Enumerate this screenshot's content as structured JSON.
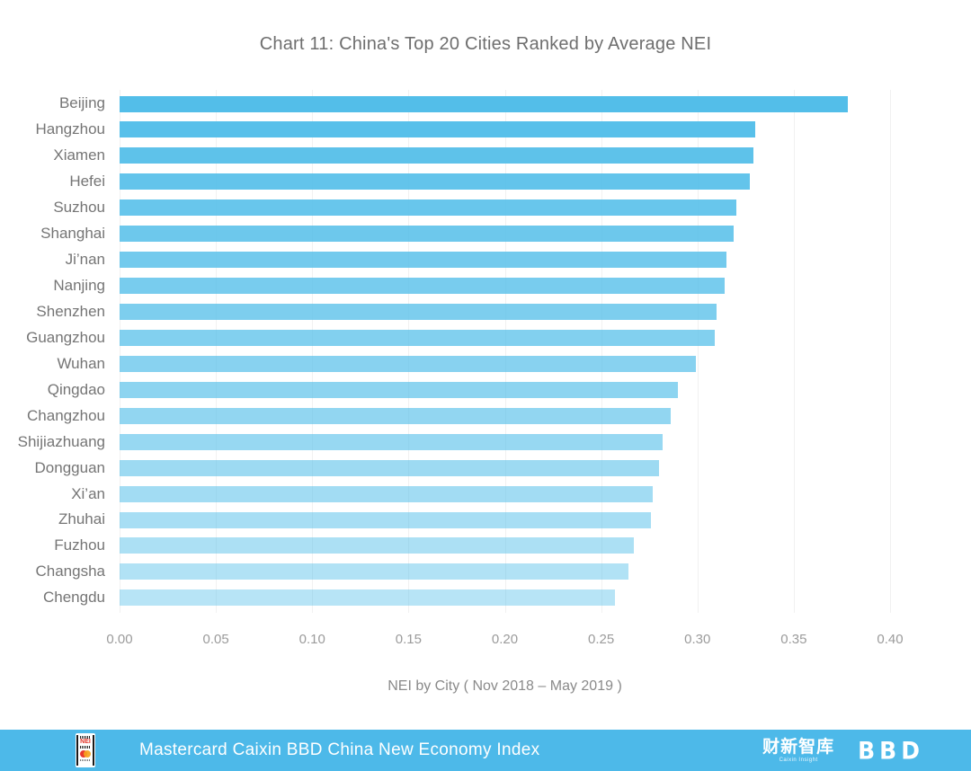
{
  "title": "Chart 11:  China's Top 20 Cities Ranked by Average NEI",
  "chart_data": {
    "type": "bar",
    "orientation": "horizontal",
    "title": "Chart 11:  China's Top 20 Cities Ranked by Average NEI",
    "xlabel": "NEI by City ( Nov 2018 – May 2019 )",
    "ylabel": "",
    "xlim": [
      0,
      0.4
    ],
    "xticks": [
      "0.00",
      "0.05",
      "0.10",
      "0.15",
      "0.20",
      "0.25",
      "0.30",
      "0.35",
      "0.40"
    ],
    "grid": "vertical-faint",
    "legend": "none",
    "categories": [
      "Beijing",
      "Hangzhou",
      "Xiamen",
      "Hefei",
      "Suzhou",
      "Shanghai",
      "Ji’nan",
      "Nanjing",
      "Shenzhen",
      "Guangzhou",
      "Wuhan",
      "Qingdao",
      "Changzhou",
      "Shijiazhuang",
      "Dongguan",
      "Xi’an",
      "Zhuhai",
      "Fuzhou",
      "Changsha",
      "Chengdu"
    ],
    "values": [
      0.378,
      0.33,
      0.329,
      0.327,
      0.32,
      0.319,
      0.315,
      0.314,
      0.31,
      0.309,
      0.299,
      0.29,
      0.286,
      0.282,
      0.28,
      0.277,
      0.276,
      0.267,
      0.264,
      0.257
    ],
    "bar_color": "#53bee9",
    "bar_fade_min_alpha": 0.42
  },
  "footer": {
    "text": "Mastercard Caixin BBD China New Economy Index",
    "bg_color": "#4db9e9",
    "nei_logo_label": "NEI",
    "caixin_brand_cn": "财新智库",
    "caixin_brand_sub": "Caixin Insight",
    "bbd_brand": "BBD"
  },
  "colors": {
    "title_text": "#6e6e6e",
    "axis_label_text": "#8a8a8a",
    "tick_text": "#9b9b9b",
    "category_text": "#757575",
    "gridline": "#f1f1f1",
    "background": "#ffffff"
  }
}
